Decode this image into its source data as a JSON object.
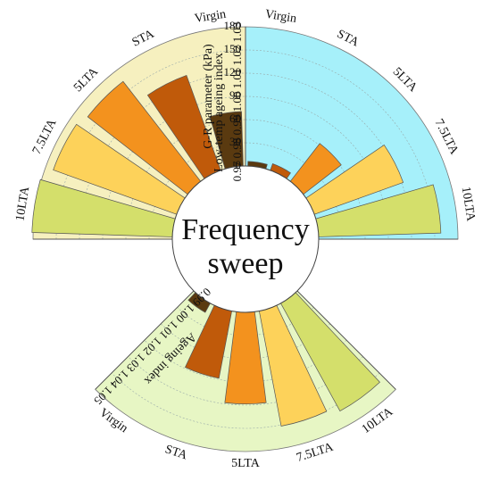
{
  "chart_data": {
    "type": "radial-bar",
    "center_label": [
      "Frequency",
      "sweep"
    ],
    "categories": [
      "Virgin",
      "STA",
      "5LTA",
      "7.5LTA",
      "10LTA"
    ],
    "colors": {
      "Virgin": "#5a3a10",
      "STA": "#c05a0a",
      "5LTA": "#f3921e",
      "7.5LTA": "#fdd25a",
      "10LTA": "#d4df6b"
    },
    "panels": [
      {
        "name": "gr",
        "axis_title": "G-R parameter (kPa)",
        "background": "#a6f0fa",
        "ticks": [
          0,
          30,
          60,
          90,
          120,
          150,
          180
        ],
        "range": [
          0,
          180
        ],
        "categories": [
          "Virgin",
          "STA",
          "5LTA",
          "7.5LTA",
          "10LTA"
        ],
        "values": [
          6,
          9,
          62,
          122,
          158
        ]
      },
      {
        "name": "ageing",
        "axis_title": "Ageing index",
        "background": "#e7f6c4",
        "ticks": [
          0.99,
          1.0,
          1.01,
          1.02,
          1.03,
          1.04,
          1.05
        ],
        "range": [
          0.99,
          1.05
        ],
        "categories": [
          "Virgin",
          "STA",
          "5LTA",
          "7.5LTA",
          "10LTA"
        ],
        "values": [
          0.9945,
          1.0195,
          1.0295,
          1.0405,
          1.043
        ]
      },
      {
        "name": "lowtemp",
        "axis_title": "Low-temp ageing index",
        "background": "#f6f0bf",
        "ticks": [
          0.97,
          0.98,
          0.99,
          1.0,
          1.01,
          1.02,
          1.03
        ],
        "range": [
          0.97,
          1.03
        ],
        "categories": [
          "Virgin",
          "STA",
          "5LTA",
          "7.5LTA",
          "10LTA"
        ],
        "values": [
          0.9935,
          1.0135,
          1.0245,
          1.0265,
          1.0305
        ]
      }
    ]
  }
}
